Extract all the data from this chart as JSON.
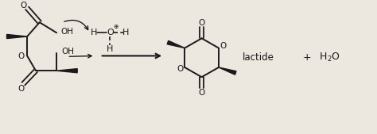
{
  "bg_color": "#ede8df",
  "line_color": "#1a1a1a",
  "figsize": [
    4.74,
    1.69
  ],
  "dpi": 100,
  "label_lactide": "lactide",
  "xlim": [
    0,
    10
  ],
  "ylim": [
    0,
    3.6
  ]
}
